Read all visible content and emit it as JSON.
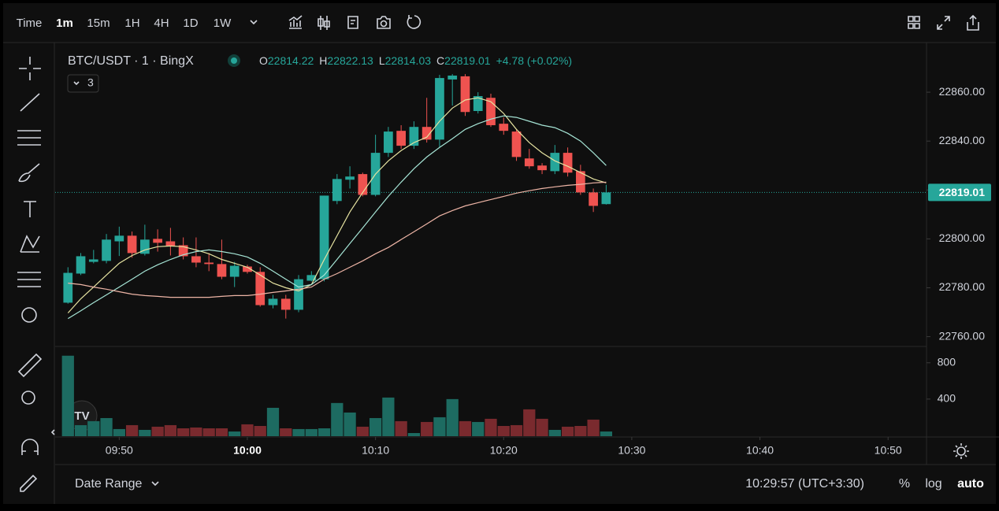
{
  "toolbar": {
    "items": [
      "Time",
      "1m",
      "15m",
      "1H",
      "4H",
      "1D",
      "1W"
    ]
  },
  "header": {
    "symbol": "BTC/USDT · 1 · BingX",
    "indicators": "3",
    "ohlc": [
      {
        "label": "O",
        "value": 22814.22
      },
      {
        "label": "H",
        "value": 22822.13
      },
      {
        "label": "L",
        "value": 22814.03
      },
      {
        "label": "C",
        "value": 22819.01
      }
    ],
    "change": "+4.78 (+0.02%)"
  },
  "footer": {
    "date_range": "Date Range",
    "clock": "10:29:57 (UTC+3:30)",
    "percent": "%",
    "log": "log",
    "auto": "auto"
  },
  "chart_data": {
    "type": "candlestick",
    "categories": [
      "09:46",
      "09:47",
      "09:48",
      "09:49",
      "09:50",
      "09:51",
      "09:52",
      "09:53",
      "09:54",
      "09:55",
      "09:56",
      "09:57",
      "09:58",
      "09:59",
      "10:00",
      "10:01",
      "10:02",
      "10:03",
      "10:04",
      "10:05",
      "10:06",
      "10:07",
      "10:08",
      "10:09",
      "10:10",
      "10:11",
      "10:12",
      "10:13",
      "10:14",
      "10:15",
      "10:16",
      "10:17",
      "10:18",
      "10:19",
      "10:20",
      "10:21",
      "10:22",
      "10:23",
      "10:24",
      "10:25",
      "10:26",
      "10:27",
      "10:28"
    ],
    "open": [
      22773.9,
      22785.8,
      22790.6,
      22791,
      22799,
      22801.3,
      22793.9,
      22800,
      22799,
      22797.4,
      22792.9,
      22790.3,
      22789.7,
      22784.5,
      22788.7,
      22786.5,
      22772.9,
      22775.5,
      22771,
      22782.9,
      22783.5,
      22815.5,
      22824.2,
      22826.5,
      22818,
      22835.2,
      22844.2,
      22838.1,
      22845.8,
      22840.6,
      22865.2,
      22866.5,
      22852.3,
      22857.7,
      22847.1,
      22843.9,
      22832.9,
      22830,
      22827.7,
      22835.2,
      22827.7,
      22819,
      22814.22
    ],
    "high": [
      22788.4,
      22794.2,
      22795.5,
      22802,
      22805,
      22803,
      22805.8,
      22803.9,
      22804.5,
      22800.6,
      22800.6,
      22794.2,
      22799.7,
      22790.6,
      22789.4,
      22788.4,
      22777.1,
      22777.1,
      22785.2,
      22786.8,
      22817.7,
      22826.5,
      22829.7,
      22827.1,
      22842.6,
      22845.8,
      22846.5,
      22848.1,
      22857.7,
      22867.1,
      22867.4,
      22867.4,
      22860,
      22859.4,
      22849.7,
      22844.8,
      22836.8,
      22831,
      22838.4,
      22837.4,
      22830.3,
      22820.6,
      22822.13
    ],
    "low": [
      22773.5,
      22785.2,
      22790,
      22790,
      22793,
      22792.3,
      22793.2,
      22794.8,
      22793.2,
      22791.6,
      22788.4,
      22786.8,
      22783.5,
      22780.3,
      22785.8,
      22772.3,
      22771.6,
      22767.4,
      22770,
      22782.6,
      22782.6,
      22814.2,
      22820.6,
      22817.4,
      22817.4,
      22833.5,
      22836.8,
      22836.8,
      22839.4,
      22837.4,
      22854.5,
      22850.3,
      22851.3,
      22845.8,
      22842.6,
      22831.9,
      22828.7,
      22826.5,
      22826.5,
      22825.5,
      22818,
      22811,
      22814.03
    ],
    "close": [
      22786.1,
      22792.9,
      22791.6,
      22799.7,
      22801.3,
      22794.2,
      22799.7,
      22798.4,
      22797.1,
      22792.9,
      22790.3,
      22789.7,
      22784.5,
      22789,
      22786.5,
      22772.9,
      22775.5,
      22771,
      22783.5,
      22785.2,
      22817.7,
      22824.5,
      22825.5,
      22818,
      22835.2,
      22843.9,
      22838.1,
      22845.8,
      22840.6,
      22865.8,
      22866.8,
      22851.9,
      22858.4,
      22846.5,
      22844.2,
      22833.5,
      22829.7,
      22828.1,
      22835.2,
      22827.1,
      22819,
      22813.5,
      22819.01
    ],
    "up_color": "#26a69a",
    "down_color": "#ef5350",
    "series": [
      {
        "color": "#e6e3a1",
        "values": [
          22769.7,
          22775.5,
          22780.3,
          22785.2,
          22790,
          22793.2,
          22795.5,
          22796.8,
          22797.1,
          22796.8,
          22795.5,
          22793.9,
          22791.6,
          22790,
          22788.4,
          22785.2,
          22781.9,
          22780,
          22778.7,
          22781.3,
          22791.6,
          22801.3,
          22811,
          22819,
          22826.5,
          22831.9,
          22836.1,
          22839.4,
          22841.6,
          22848.1,
          22853.5,
          22856.8,
          22857.7,
          22856.1,
          22851.3,
          22844.8,
          22839.4,
          22835.2,
          22831.9,
          22829.7,
          22827.1,
          22824.5,
          22822.9
        ]
      },
      {
        "color": "#a6e5d6",
        "values": [
          22767.4,
          22770.6,
          22773.9,
          22777.1,
          22780.3,
          22783.5,
          22786.8,
          22789.4,
          22791.6,
          22793.5,
          22794.8,
          22795.5,
          22794.8,
          22793.9,
          22792.6,
          22790,
          22786.8,
          22783.5,
          22780.3,
          22781.3,
          22785.2,
          22791.6,
          22798.1,
          22804.5,
          22811,
          22817.4,
          22823.2,
          22828.7,
          22833.5,
          22837.4,
          22841,
          22844.8,
          22847.1,
          22849,
          22850.3,
          22849.7,
          22848.1,
          22846.5,
          22845.5,
          22843.2,
          22840,
          22835.2,
          22830
        ]
      },
      {
        "color": "#eeb5a6",
        "values": [
          22781.9,
          22781.3,
          22780.3,
          22779.4,
          22778.4,
          22777.4,
          22776.8,
          22776.5,
          22776.1,
          22776.1,
          22776.1,
          22776.1,
          22776.5,
          22776.8,
          22776.8,
          22777.4,
          22778.1,
          22778.7,
          22779.4,
          22780.3,
          22783.5,
          22785.8,
          22788.4,
          22791,
          22793.9,
          22796.5,
          22799.7,
          22802.9,
          22806.1,
          22809.4,
          22811.6,
          22813.5,
          22814.8,
          22816.1,
          22817.4,
          22818.7,
          22819.7,
          22820.6,
          22821.3,
          22821.9,
          22822.3,
          22822.9,
          22823.2
        ]
      }
    ],
    "last_price": 22819.01,
    "ylim": [
      22756,
      22880
    ],
    "yticks": [
      {
        "value": 22760,
        "label": "22760.00"
      },
      {
        "value": 22780,
        "label": "22780.00"
      },
      {
        "value": 22800,
        "label": "22800.00"
      },
      {
        "value": 22820,
        "label": "22820.00"
      },
      {
        "value": 22840,
        "label": "22840.00"
      },
      {
        "value": 22860,
        "label": "22860.00"
      }
    ],
    "xlim": [
      "09:45",
      "10:53"
    ],
    "xticks": [
      "09:50",
      "10:00",
      "10:10",
      "10:20",
      "10:30",
      "10:40",
      "10:50"
    ],
    "volume": {
      "values": [
        878,
        113,
        157,
        191,
        70,
        113,
        61,
        96,
        113,
        78,
        87,
        78,
        78,
        43,
        122,
        104,
        304,
        78,
        70,
        70,
        78,
        357,
        252,
        96,
        191,
        417,
        157,
        26,
        148,
        200,
        400,
        157,
        148,
        183,
        104,
        113,
        287,
        183,
        61,
        96,
        104,
        174,
        43
      ],
      "up_color": "#1d6b61",
      "down_color": "#7a2a2e",
      "ylim": [
        0,
        980
      ],
      "yticks": [
        400,
        800
      ]
    }
  }
}
